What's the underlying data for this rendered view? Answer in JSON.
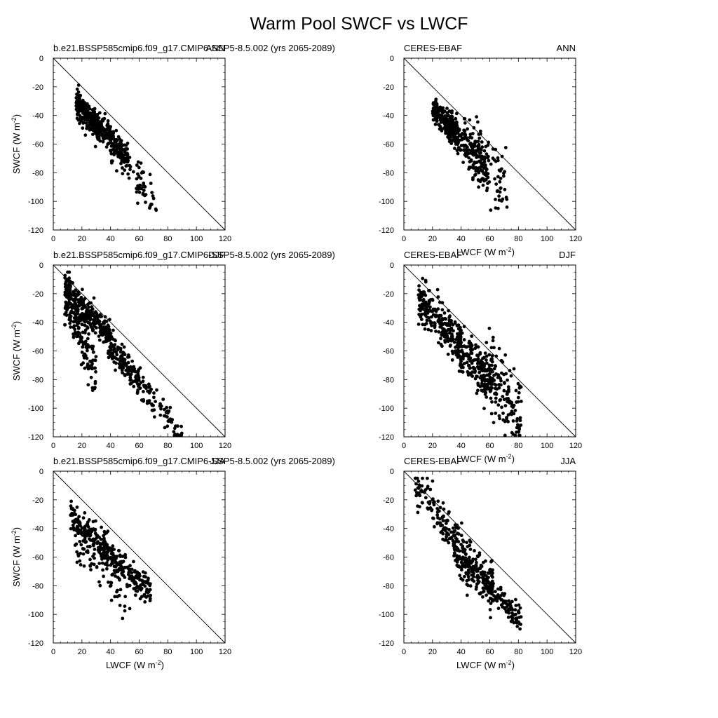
{
  "title": "Warm Pool SWCF vs LWCF",
  "chart_data": [
    {
      "type": "scatter",
      "left_title": "b.e21.BSSP585cmip6.f09_g17.CMIP6-SSP5-8.5.002 (yrs 2065-2089)",
      "right_title": "ANN",
      "xlabel": "",
      "ylabel": "SWCF (W m-2)",
      "ylabel_unit": "m",
      "ylabel_exp": "-2",
      "xlabel_unit": "",
      "xlim": [
        0,
        120
      ],
      "ylim": [
        -120,
        0
      ],
      "xticks": [
        0,
        20,
        40,
        60,
        80,
        100,
        120
      ],
      "yticks": [
        0,
        -20,
        -40,
        -60,
        -80,
        -100,
        -120
      ],
      "reference_line": "y = -x",
      "clusters": [
        {
          "n": 220,
          "x": [
            16,
            32
          ],
          "slope": -1.05,
          "intercept": -15,
          "spread": 4.5
        },
        {
          "n": 200,
          "x": [
            28,
            52
          ],
          "slope": -1.0,
          "intercept": -16,
          "spread": 4.5
        },
        {
          "n": 80,
          "x": [
            40,
            72
          ],
          "slope": -1.3,
          "intercept": -8,
          "spread": 6
        }
      ]
    },
    {
      "type": "scatter",
      "left_title": "CERES-EBAF",
      "right_title": "ANN",
      "xlabel": "LWCF (W m-2)",
      "ylabel": "",
      "xlabel_unit": "",
      "xlabel_exp": "-2",
      "xlim": [
        0,
        120
      ],
      "ylim": [
        -120,
        0
      ],
      "xticks": [
        0,
        20,
        40,
        60,
        80,
        100,
        120
      ],
      "yticks": [
        0,
        -20,
        -40,
        -60,
        -80,
        -100,
        -120
      ],
      "reference_line": "y = -x",
      "clusters": [
        {
          "n": 200,
          "x": [
            20,
            38
          ],
          "slope": -1.05,
          "intercept": -14,
          "spread": 4.5
        },
        {
          "n": 180,
          "x": [
            30,
            58
          ],
          "slope": -1.05,
          "intercept": -14,
          "spread": 7
        },
        {
          "n": 100,
          "x": [
            42,
            72
          ],
          "slope": -1.1,
          "intercept": -12,
          "spread": 12
        }
      ]
    },
    {
      "type": "scatter",
      "left_title": "b.e21.BSSP585cmip6.f09_g17.CMIP6-SSP5-8.5.002 (yrs 2065-2089)",
      "right_title": "DJF",
      "xlabel": "",
      "ylabel": "SWCF (W m-2)",
      "ylabel_unit": "m",
      "ylabel_exp": "-2",
      "xlabel_unit": "",
      "xlim": [
        0,
        120
      ],
      "ylim": [
        -120,
        0
      ],
      "xticks": [
        0,
        20,
        40,
        60,
        80,
        100,
        120
      ],
      "yticks": [
        0,
        -20,
        -40,
        -60,
        -80,
        -100,
        -120
      ],
      "reference_line": "y = -x",
      "clusters": [
        {
          "n": 260,
          "x": [
            8,
            40
          ],
          "slope": -1.0,
          "intercept": -10,
          "spread": 5
        },
        {
          "n": 180,
          "x": [
            8,
            30
          ],
          "slope": -2.4,
          "intercept": 0,
          "spread": 10
        },
        {
          "n": 140,
          "x": [
            38,
            60
          ],
          "slope": -1.15,
          "intercept": -12,
          "spread": 5
        },
        {
          "n": 90,
          "x": [
            55,
            90
          ],
          "slope": -1.3,
          "intercept": -4,
          "spread": 6
        }
      ]
    },
    {
      "type": "scatter",
      "left_title": "CERES-EBAF",
      "right_title": "DJF",
      "xlabel": "LWCF (W m-2)",
      "ylabel": "",
      "xlabel_unit": "",
      "xlabel_exp": "-2",
      "xlim": [
        0,
        120
      ],
      "ylim": [
        -120,
        0
      ],
      "xticks": [
        0,
        20,
        40,
        60,
        80,
        100,
        120
      ],
      "yticks": [
        0,
        -20,
        -40,
        -60,
        -80,
        -100,
        -120
      ],
      "reference_line": "y = -x",
      "clusters": [
        {
          "n": 220,
          "x": [
            10,
            40
          ],
          "slope": -1.1,
          "intercept": -12,
          "spread": 7
        },
        {
          "n": 200,
          "x": [
            38,
            62
          ],
          "slope": -1.15,
          "intercept": -10,
          "spread": 9
        },
        {
          "n": 150,
          "x": [
            55,
            82
          ],
          "slope": -1.0,
          "intercept": -20,
          "spread": 14
        }
      ]
    },
    {
      "type": "scatter",
      "left_title": "b.e21.BSSP585cmip6.f09_g17.CMIP6-SSP5-8.5.002 (yrs 2065-2089)",
      "right_title": "JJA",
      "xlabel": "LWCF (W m-2)",
      "ylabel": "SWCF (W m-2)",
      "ylabel_unit": "m",
      "ylabel_exp": "-2",
      "xlabel_unit": "",
      "xlabel_exp": "-2",
      "xlim": [
        0,
        120
      ],
      "ylim": [
        -120,
        0
      ],
      "xticks": [
        0,
        20,
        40,
        60,
        80,
        100,
        120
      ],
      "yticks": [
        0,
        -20,
        -40,
        -60,
        -80,
        -100,
        -120
      ],
      "reference_line": "y = -x",
      "clusters": [
        {
          "n": 160,
          "x": [
            12,
            38
          ],
          "slope": -1.0,
          "intercept": -20,
          "spread": 6
        },
        {
          "n": 180,
          "x": [
            35,
            68
          ],
          "slope": -1.0,
          "intercept": -18,
          "spread": 6
        },
        {
          "n": 60,
          "x": [
            15,
            55
          ],
          "slope": -1.05,
          "intercept": -35,
          "spread": 8
        }
      ]
    },
    {
      "type": "scatter",
      "left_title": "CERES-EBAF",
      "right_title": "JJA",
      "xlabel": "LWCF (W m-2)",
      "ylabel": "",
      "xlabel_unit": "",
      "xlabel_exp": "-2",
      "xlim": [
        0,
        120
      ],
      "ylim": [
        -120,
        0
      ],
      "xticks": [
        0,
        20,
        40,
        60,
        80,
        100,
        120
      ],
      "yticks": [
        0,
        -20,
        -40,
        -60,
        -80,
        -100,
        -120
      ],
      "reference_line": "y = -x",
      "clusters": [
        {
          "n": 120,
          "x": [
            8,
            38
          ],
          "slope": -1.3,
          "intercept": 0,
          "spread": 7
        },
        {
          "n": 200,
          "x": [
            35,
            62
          ],
          "slope": -1.1,
          "intercept": -15,
          "spread": 9
        },
        {
          "n": 120,
          "x": [
            55,
            82
          ],
          "slope": -1.1,
          "intercept": -15,
          "spread": 5
        }
      ]
    }
  ]
}
